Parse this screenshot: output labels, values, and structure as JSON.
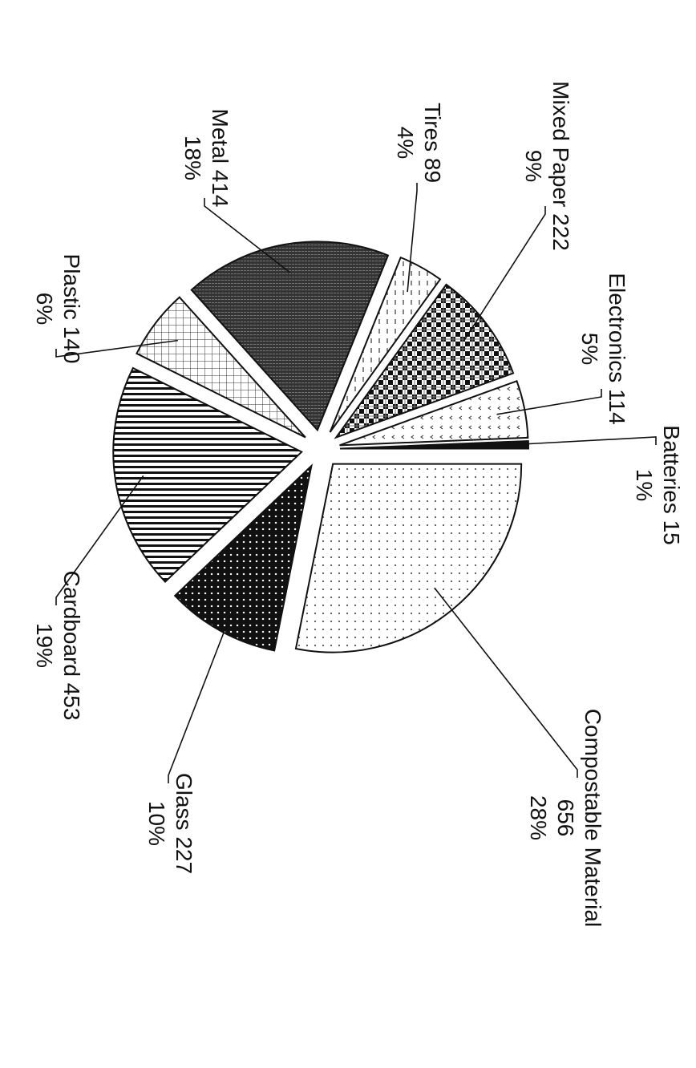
{
  "chart_data": {
    "type": "pie",
    "categories": [
      "Compostable Material",
      "Glass",
      "Cardboard",
      "Plastic",
      "Metal",
      "Tires",
      "Mixed Paper",
      "Electronics",
      "Batteries"
    ],
    "values": [
      656,
      227,
      453,
      140,
      414,
      89,
      222,
      114,
      15
    ],
    "percent_labels": [
      "28%",
      "10%",
      "19%",
      "6%",
      "18%",
      "4%",
      "9%",
      "5%",
      "1%"
    ]
  }
}
